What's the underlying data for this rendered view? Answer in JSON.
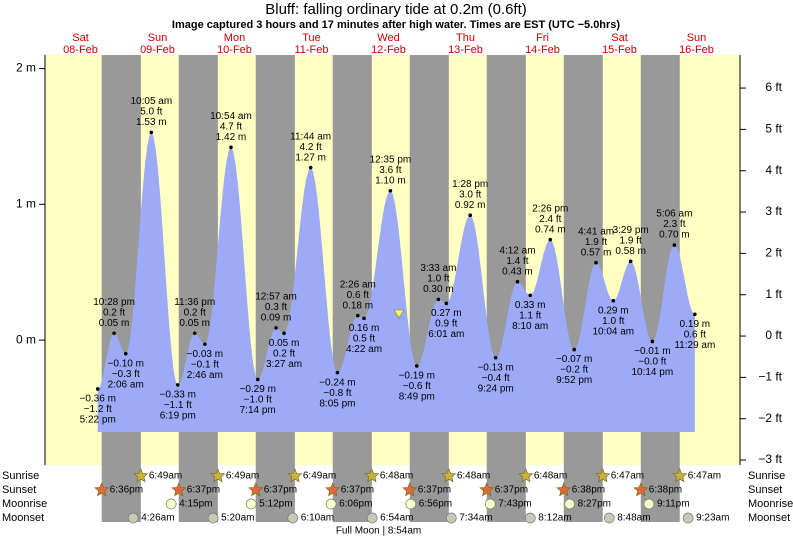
{
  "chart_data": {
    "type": "tide",
    "title": "Bluff: falling  ordinary tide at 0.2m (0.6ft)",
    "subtitle": "Image captured 3 hours and 17 minutes after high water. Times are EST (UTC −5.0hrs)",
    "ylim": [
      -0.92,
      2.1
    ],
    "yticks": [
      {
        "value": 2,
        "label": "2 m"
      },
      {
        "value": 1,
        "label": "1 m"
      },
      {
        "value": 0,
        "label": "0 m"
      }
    ],
    "y2lim": [
      -3.12,
      6.8
    ],
    "y2ticks": [
      {
        "value": 6,
        "label": "6 ft"
      },
      {
        "value": 5,
        "label": "5 ft"
      },
      {
        "value": 4,
        "label": "4 ft"
      },
      {
        "value": 3,
        "label": "3 ft"
      },
      {
        "value": 2,
        "label": "2 ft"
      },
      {
        "value": 1,
        "label": "1 ft"
      },
      {
        "value": 0,
        "label": "0 ft"
      },
      {
        "value": -1,
        "label": "−1 ft"
      },
      {
        "value": -2,
        "label": "−2 ft"
      },
      {
        "value": -3,
        "label": "−3 ft"
      }
    ],
    "row_labels": {
      "sunrise": "Sunrise",
      "sunset": "Sunset",
      "moonrise": "Moonrise",
      "moonset": "Moonset"
    },
    "days": [
      {
        "day": "Sat",
        "date": "08-Feb",
        "sunset": "6:36pm",
        "tides": [
          {
            "time": "5:22 pm",
            "value": -0.36,
            "value_label": "−0.36 m",
            "feet": -1.2,
            "feet_label": "−1.2 ft"
          },
          {
            "time": "10:28 pm",
            "value": 0.05,
            "value_label": "0.05 m",
            "feet": 0.2,
            "feet_label": "0.2 ft"
          }
        ]
      },
      {
        "day": "Sun",
        "date": "09-Feb",
        "sunrise": "6:49am",
        "sunset": "6:37pm",
        "moonrise": "4:15pm",
        "moonset": "4:26am",
        "tides": [
          {
            "time": "2:06 am",
            "value": -0.1,
            "value_label": "−0.10 m",
            "feet": -0.3,
            "feet_label": "−0.3 ft"
          },
          {
            "time": "10:05 am",
            "value": 1.53,
            "value_label": "1.53 m",
            "feet": 5.0,
            "feet_label": "5.0 ft"
          },
          {
            "time": "6:19 pm",
            "value": -0.33,
            "value_label": "−0.33 m",
            "feet": -1.1,
            "feet_label": "−1.1 ft"
          },
          {
            "time": "11:36 pm",
            "value": 0.05,
            "value_label": "0.05 m",
            "feet": 0.2,
            "feet_label": "0.2 ft"
          }
        ]
      },
      {
        "day": "Mon",
        "date": "10-Feb",
        "sunrise": "6:49am",
        "sunset": "6:37pm",
        "moonrise": "5:12pm",
        "moonset": "5:20am",
        "tides": [
          {
            "time": "2:46 am",
            "value": -0.03,
            "value_label": "−0.03 m",
            "feet": -0.1,
            "feet_label": "−0.1 ft"
          },
          {
            "time": "10:54 am",
            "value": 1.42,
            "value_label": "1.42 m",
            "feet": 4.7,
            "feet_label": "4.7 ft"
          },
          {
            "time": "7:14 pm",
            "value": -0.29,
            "value_label": "−0.29 m",
            "feet": -1.0,
            "feet_label": "−1.0 ft"
          }
        ]
      },
      {
        "day": "Tue",
        "date": "11-Feb",
        "sunrise": "6:49am",
        "sunset": "6:37pm",
        "moonrise": "6:06pm",
        "moonset": "6:10am",
        "tides": [
          {
            "time": "12:57 am",
            "value": 0.09,
            "value_label": "0.09 m",
            "feet": 0.3,
            "feet_label": "0.3 ft"
          },
          {
            "time": "3:27 am",
            "value": 0.05,
            "value_label": "0.05 m",
            "feet": 0.2,
            "feet_label": "0.2 ft"
          },
          {
            "time": "11:44 am",
            "value": 1.27,
            "value_label": "1.27 m",
            "feet": 4.2,
            "feet_label": "4.2 ft"
          },
          {
            "time": "8:05 pm",
            "value": -0.24,
            "value_label": "−0.24 m",
            "feet": -0.8,
            "feet_label": "−0.8 ft"
          }
        ]
      },
      {
        "day": "Wed",
        "date": "12-Feb",
        "sunrise": "6:48am",
        "sunset": "6:37pm",
        "moonrise": "6:56pm",
        "moonset": "6:54am",
        "moon_phase": "Full Moon | 8:54am",
        "tides": [
          {
            "time": "2:26 am",
            "value": 0.18,
            "value_label": "0.18 m",
            "feet": 0.6,
            "feet_label": "0.6 ft"
          },
          {
            "time": "4:22 am",
            "value": 0.16,
            "value_label": "0.16 m",
            "feet": 0.5,
            "feet_label": "0.5 ft"
          },
          {
            "time": "12:35 pm",
            "value": 1.1,
            "value_label": "1.10 m",
            "feet": 3.6,
            "feet_label": "3.6 ft"
          },
          {
            "time": "8:49 pm",
            "value": -0.19,
            "value_label": "−0.19 m",
            "feet": -0.6,
            "feet_label": "−0.6 ft"
          }
        ]
      },
      {
        "day": "Thu",
        "date": "13-Feb",
        "sunrise": "6:48am",
        "sunset": "6:37pm",
        "moonrise": "7:43pm",
        "moonset": "7:34am",
        "tides": [
          {
            "time": "3:33 am",
            "value": 0.3,
            "value_label": "0.30 m",
            "feet": 1.0,
            "feet_label": "1.0 ft"
          },
          {
            "time": "6:01 am",
            "value": 0.27,
            "value_label": "0.27 m",
            "feet": 0.9,
            "feet_label": "0.9 ft"
          },
          {
            "time": "1:28 pm",
            "value": 0.92,
            "value_label": "0.92 m",
            "feet": 3.0,
            "feet_label": "3.0 ft"
          },
          {
            "time": "9:24 pm",
            "value": -0.13,
            "value_label": "−0.13 m",
            "feet": -0.4,
            "feet_label": "−0.4 ft"
          }
        ]
      },
      {
        "day": "Fri",
        "date": "14-Feb",
        "sunrise": "6:48am",
        "sunset": "6:38pm",
        "moonrise": "8:27pm",
        "moonset": "8:12am",
        "tides": [
          {
            "time": "4:12 am",
            "value": 0.43,
            "value_label": "0.43 m",
            "feet": 1.4,
            "feet_label": "1.4 ft"
          },
          {
            "time": "8:10 am",
            "value": 0.33,
            "value_label": "0.33 m",
            "feet": 1.1,
            "feet_label": "1.1 ft"
          },
          {
            "time": "2:26 pm",
            "value": 0.74,
            "value_label": "0.74 m",
            "feet": 2.4,
            "feet_label": "2.4 ft"
          },
          {
            "time": "9:52 pm",
            "value": -0.07,
            "value_label": "−0.07 m",
            "feet": -0.2,
            "feet_label": "−0.2 ft"
          }
        ]
      },
      {
        "day": "Sat",
        "date": "15-Feb",
        "sunrise": "6:47am",
        "sunset": "6:38pm",
        "moonrise": "9:11pm",
        "moonset": "8:48am",
        "tides": [
          {
            "time": "4:41 am",
            "value": 0.57,
            "value_label": "0.57 m",
            "feet": 1.9,
            "feet_label": "1.9 ft"
          },
          {
            "time": "10:04 am",
            "value": 0.29,
            "value_label": "0.29 m",
            "feet": 1.0,
            "feet_label": "1.0 ft"
          },
          {
            "time": "3:29 pm",
            "value": 0.58,
            "value_label": "0.58 m",
            "feet": 1.9,
            "feet_label": "1.9 ft"
          },
          {
            "time": "10:14 pm",
            "value": -0.01,
            "value_label": "−0.01 m",
            "feet": -0.0,
            "feet_label": "−0.0 ft"
          }
        ]
      },
      {
        "day": "Sun",
        "date": "16-Feb",
        "sunrise": "6:47am",
        "moonset": "9:23am",
        "tides": [
          {
            "time": "5:06 am",
            "value": 0.7,
            "value_label": "0.70 m",
            "feet": 2.3,
            "feet_label": "2.3 ft"
          },
          {
            "time": "11:29 am",
            "value": 0.19,
            "value_label": "0.19 m",
            "feet": 0.6,
            "feet_label": "0.6 ft"
          }
        ]
      }
    ]
  }
}
